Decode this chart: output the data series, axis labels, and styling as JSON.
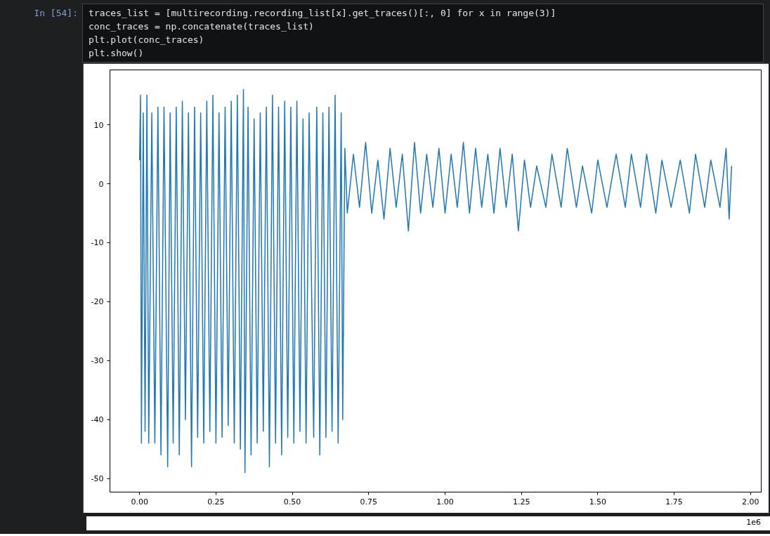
{
  "chart_data": {
    "type": "line",
    "annotations": [
      "In [54]:",
      "traces_list = [multirecording.recording_list[x].get_traces()[:, 0] for x in range(3)]",
      "conc_traces = np.concatenate(traces_list)",
      "plt.plot(conc_traces)",
      "plt.show()",
      "1e6"
    ],
    "x": [
      0,
      0.003,
      0.006,
      0.012,
      0.018,
      0.024,
      0.03,
      0.04,
      0.05,
      0.06,
      0.07,
      0.08,
      0.092,
      0.1,
      0.11,
      0.12,
      0.13,
      0.14,
      0.15,
      0.16,
      0.17,
      0.18,
      0.19,
      0.2,
      0.21,
      0.22,
      0.23,
      0.24,
      0.25,
      0.26,
      0.27,
      0.28,
      0.29,
      0.3,
      0.31,
      0.32,
      0.33,
      0.34,
      0.345,
      0.355,
      0.365,
      0.375,
      0.385,
      0.395,
      0.405,
      0.415,
      0.425,
      0.435,
      0.445,
      0.455,
      0.465,
      0.475,
      0.485,
      0.495,
      0.505,
      0.515,
      0.525,
      0.535,
      0.545,
      0.555,
      0.57,
      0.58,
      0.59,
      0.6,
      0.61,
      0.62,
      0.63,
      0.64,
      0.65,
      0.66,
      0.665,
      0.672,
      0.68,
      0.7,
      0.72,
      0.74,
      0.76,
      0.78,
      0.8,
      0.82,
      0.84,
      0.86,
      0.88,
      0.9,
      0.92,
      0.94,
      0.96,
      0.98,
      1.0,
      1.02,
      1.04,
      1.06,
      1.08,
      1.1,
      1.12,
      1.14,
      1.16,
      1.18,
      1.2,
      1.22,
      1.24,
      1.26,
      1.28,
      1.3,
      1.33,
      1.35,
      1.38,
      1.4,
      1.43,
      1.45,
      1.48,
      1.5,
      1.53,
      1.56,
      1.59,
      1.61,
      1.64,
      1.66,
      1.69,
      1.71,
      1.74,
      1.77,
      1.8,
      1.82,
      1.85,
      1.87,
      1.9,
      1.92,
      1.93,
      1.938
    ],
    "series": [
      {
        "color": "#1f77b4",
        "values": [
          4,
          15,
          -44,
          12,
          -42,
          15,
          -44,
          12,
          -44,
          13,
          -46,
          13,
          -48,
          12,
          -44,
          13,
          -46,
          14,
          -40,
          12,
          -48,
          13,
          -43,
          12,
          -44,
          14,
          -42,
          15,
          -44,
          12,
          -43,
          13,
          -41,
          14,
          -44,
          15,
          -45,
          16,
          -49,
          13,
          -46,
          11,
          -44,
          12,
          -42,
          13,
          -48,
          15,
          -44,
          13,
          -46,
          14,
          -43,
          13,
          -44,
          14,
          -42,
          11,
          -44,
          12,
          -43,
          13,
          -46,
          12,
          -43,
          13,
          -42,
          15,
          -44,
          12,
          -40,
          6,
          -5,
          5,
          -4,
          7,
          -5,
          4,
          -6,
          6,
          -4,
          5,
          -8,
          7,
          -5,
          5,
          -4,
          6,
          -5,
          5,
          -4,
          7,
          -5,
          6,
          -4,
          5,
          -5,
          6,
          -4,
          5,
          -8,
          4,
          -4,
          3,
          -4,
          5,
          -4,
          6,
          -4,
          3,
          -5,
          4,
          -4,
          5,
          -4,
          5,
          -4,
          5,
          -5,
          4,
          -4,
          4,
          -5,
          5,
          -4,
          4,
          -4,
          6,
          -6,
          3
        ]
      }
    ],
    "xlim": [
      -0.097,
      2.035
    ],
    "ylim": [
      -52.3,
      19.3
    ],
    "xticks": [
      {
        "value": 0,
        "label": "0.00"
      },
      0.25,
      {
        "value": 0.5,
        "label": "0.50"
      },
      0.75,
      {
        "value": 1,
        "label": "1.00"
      },
      1.25,
      {
        "value": 1.5,
        "label": "1.50"
      },
      1.75,
      {
        "value": 2,
        "label": "2.00"
      }
    ],
    "yticks": [
      -50,
      -40,
      -30,
      -20,
      -10,
      0,
      10
    ]
  }
}
